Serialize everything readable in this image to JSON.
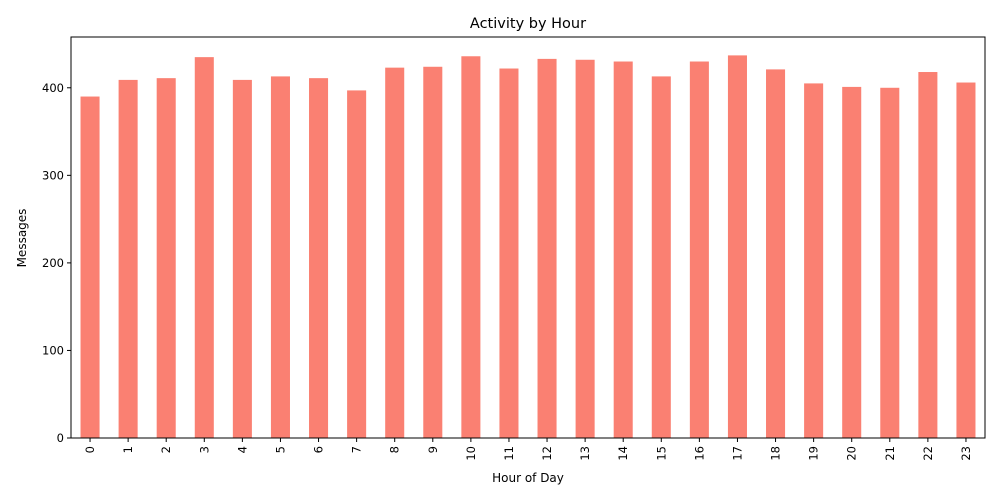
{
  "chart_data": {
    "type": "bar",
    "title": "Activity by Hour",
    "xlabel": "Hour of Day",
    "ylabel": "Messages",
    "categories": [
      "0",
      "1",
      "2",
      "3",
      "4",
      "5",
      "6",
      "7",
      "8",
      "9",
      "10",
      "11",
      "12",
      "13",
      "14",
      "15",
      "16",
      "17",
      "18",
      "19",
      "20",
      "21",
      "22",
      "23"
    ],
    "values": [
      390,
      409,
      411,
      435,
      409,
      413,
      411,
      397,
      423,
      424,
      436,
      422,
      433,
      432,
      430,
      413,
      430,
      437,
      421,
      405,
      401,
      400,
      418,
      406
    ],
    "yticks": [
      0,
      100,
      200,
      300,
      400
    ],
    "ylim": [
      0,
      458
    ],
    "bar_color": "#fa8072",
    "grid": false,
    "legend": "none"
  }
}
